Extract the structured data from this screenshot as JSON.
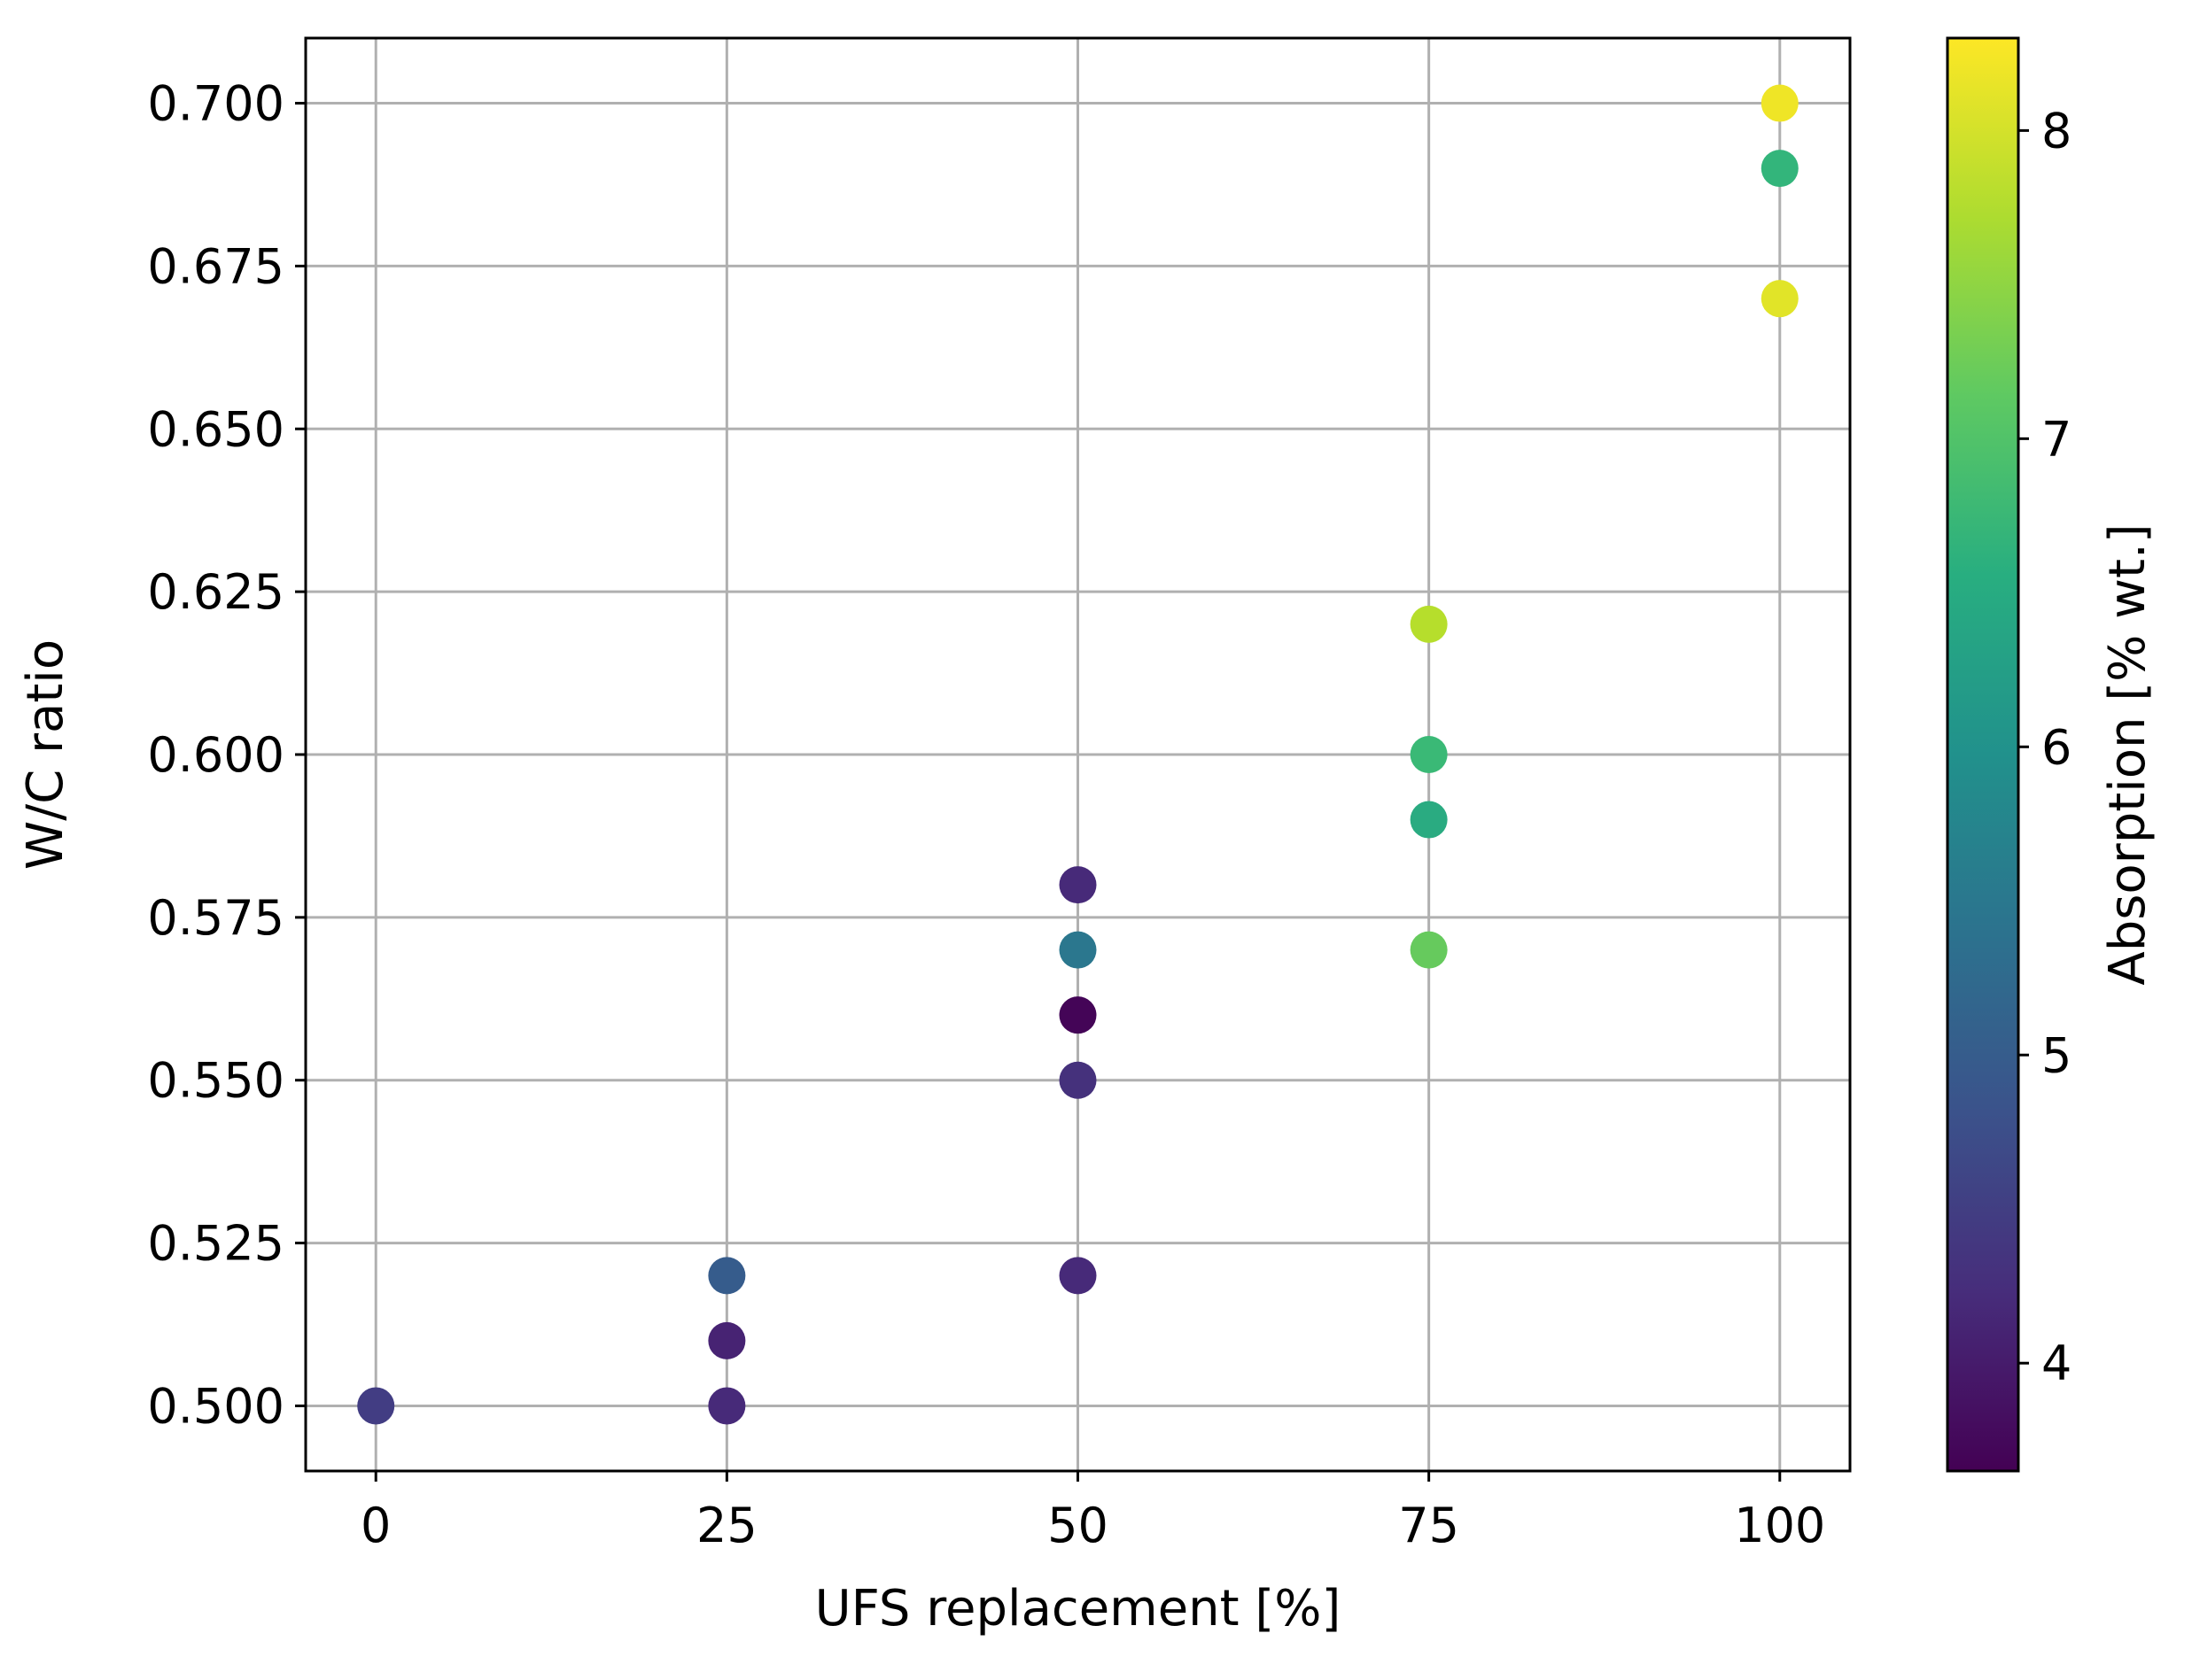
{
  "chart_data": {
    "type": "scatter",
    "title": "",
    "xlabel": "UFS replacement [%]",
    "ylabel": "W/C ratio",
    "xlim": [
      -5,
      105
    ],
    "ylim": [
      0.49,
      0.71
    ],
    "x_ticks": [
      0,
      25,
      50,
      75,
      100
    ],
    "x_tick_labels": [
      "0",
      "25",
      "50",
      "75",
      "100"
    ],
    "y_ticks": [
      0.5,
      0.525,
      0.55,
      0.575,
      0.6,
      0.625,
      0.65,
      0.675,
      0.7
    ],
    "y_tick_labels": [
      "0.500",
      "0.525",
      "0.550",
      "0.575",
      "0.600",
      "0.625",
      "0.650",
      "0.675",
      "0.700"
    ],
    "grid": true,
    "colorbar": {
      "label": "Absorption [% wt.]",
      "range": [
        3.65,
        8.3
      ],
      "ticks": [
        4,
        5,
        6,
        7,
        8
      ],
      "tick_labels": [
        "4",
        "5",
        "6",
        "7",
        "8"
      ],
      "colormap": "viridis"
    },
    "points": [
      {
        "x": 0,
        "y": 0.5,
        "c": 4.5
      },
      {
        "x": 25,
        "y": 0.5,
        "c": 4.2
      },
      {
        "x": 25,
        "y": 0.51,
        "c": 4.1
      },
      {
        "x": 25,
        "y": 0.52,
        "c": 5.0
      },
      {
        "x": 50,
        "y": 0.52,
        "c": 4.2
      },
      {
        "x": 50,
        "y": 0.55,
        "c": 4.3
      },
      {
        "x": 50,
        "y": 0.56,
        "c": 3.7
      },
      {
        "x": 50,
        "y": 0.57,
        "c": 5.5
      },
      {
        "x": 50,
        "y": 0.58,
        "c": 4.2
      },
      {
        "x": 75,
        "y": 0.57,
        "c": 7.2
      },
      {
        "x": 75,
        "y": 0.59,
        "c": 6.5
      },
      {
        "x": 75,
        "y": 0.6,
        "c": 6.8
      },
      {
        "x": 75,
        "y": 0.62,
        "c": 7.8
      },
      {
        "x": 100,
        "y": 0.67,
        "c": 8.1
      },
      {
        "x": 100,
        "y": 0.69,
        "c": 6.7
      },
      {
        "x": 100,
        "y": 0.7,
        "c": 8.2
      }
    ]
  }
}
